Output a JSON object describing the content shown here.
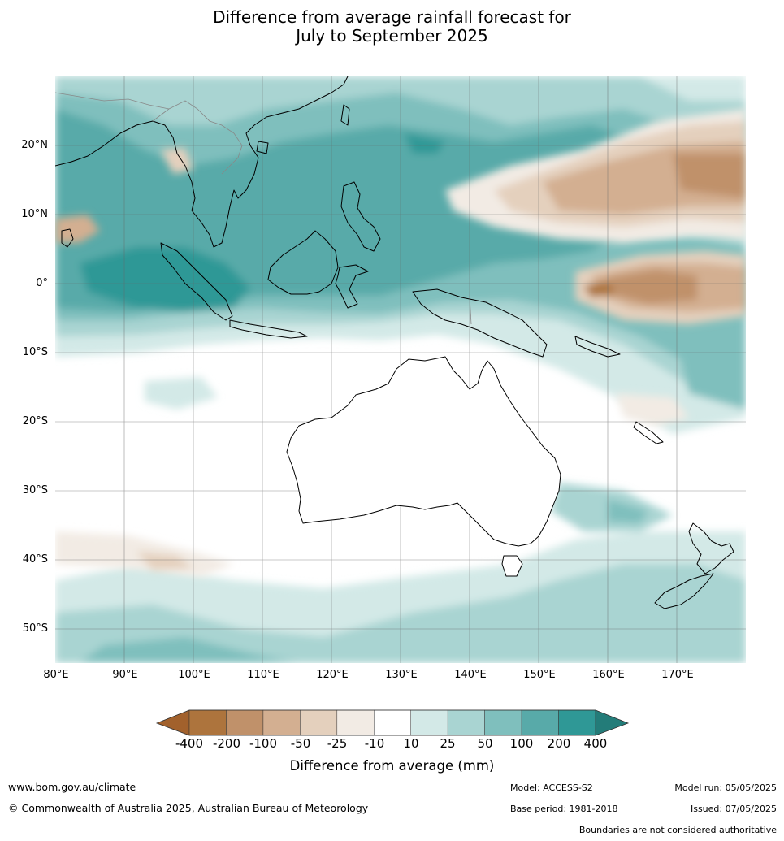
{
  "title": {
    "line1": "Difference from average rainfall forecast for",
    "line2": "July to September 2025"
  },
  "map": {
    "lon_range": [
      80,
      180
    ],
    "lat_range": [
      -55,
      30
    ],
    "lat_labels": [
      "20°N",
      "10°N",
      "0°",
      "10°S",
      "20°S",
      "30°S",
      "40°S",
      "50°S"
    ],
    "lon_labels": [
      "80°E",
      "90°E",
      "100°E",
      "110°E",
      "120°E",
      "130°E",
      "140°E",
      "150°E",
      "160°E",
      "170°E"
    ]
  },
  "legend": {
    "title": "Difference from average (mm)",
    "ticks": [
      "-400",
      "-200",
      "-100",
      "-50",
      "-25",
      "-10",
      "10",
      "25",
      "50",
      "100",
      "200",
      "400"
    ],
    "colors": [
      "#a2612c",
      "#ad743d",
      "#c0916a",
      "#d3af91",
      "#e4d0bd",
      "#f2ebe4",
      "#ffffff",
      "#d3e9e7",
      "#a9d4d2",
      "#7fbfbd",
      "#58aaa9",
      "#2f9896",
      "#237c79"
    ]
  },
  "footer": {
    "website": "www.bom.gov.au/climate",
    "copyright": "© Commonwealth of Australia 2025, Australian Bureau of Meteorology",
    "model": "Model: ACCESS-S2",
    "base_period": "Base period: 1981-2018",
    "model_run": "Model run: 05/05/2025",
    "issued": "Issued: 07/05/2025",
    "disclaimer": "Boundaries are not considered authoritative"
  }
}
